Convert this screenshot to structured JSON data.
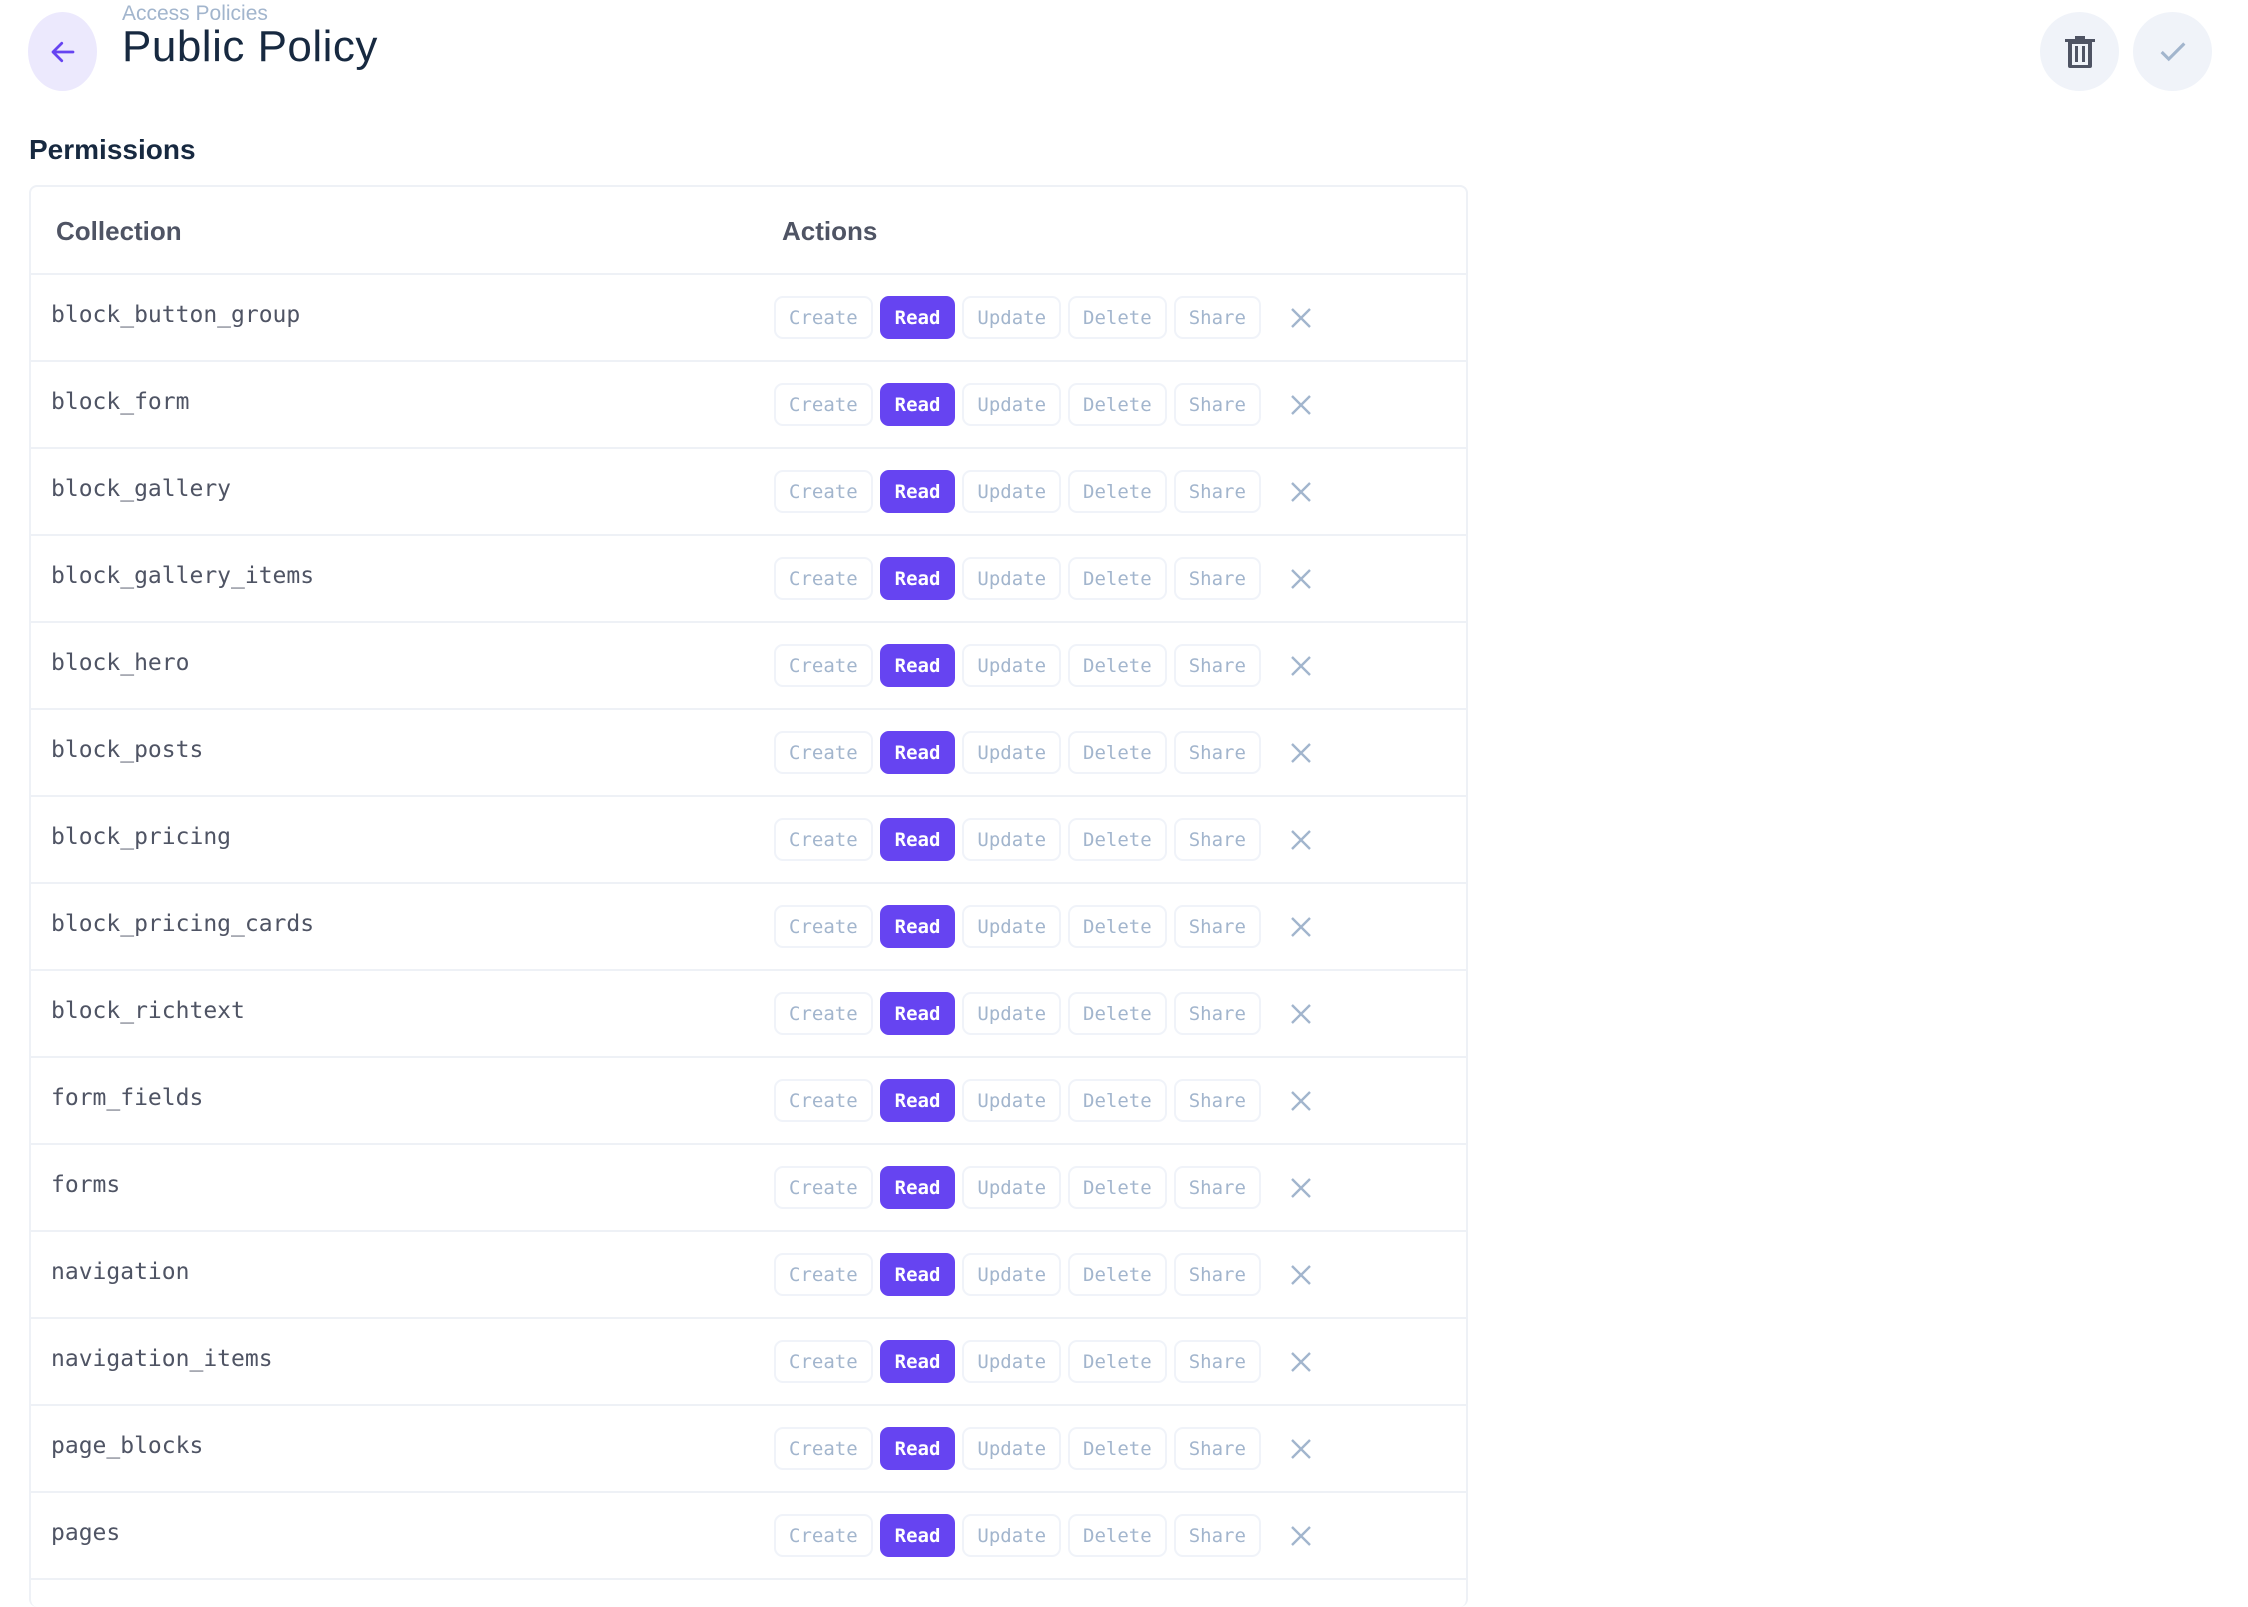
{
  "header": {
    "breadcrumb": "Access Policies",
    "title": "Public Policy",
    "back_icon": "arrow-left-icon",
    "delete_icon": "trash-icon",
    "save_icon": "check-icon"
  },
  "permissions": {
    "section_title": "Permissions",
    "columns": {
      "collection": "Collection",
      "actions": "Actions"
    },
    "action_labels": [
      "Create",
      "Read",
      "Update",
      "Delete",
      "Share"
    ],
    "accent_color": "#6644f1",
    "rows": [
      {
        "collection": "block_button_group",
        "enabled": [
          "Read"
        ]
      },
      {
        "collection": "block_form",
        "enabled": [
          "Read"
        ]
      },
      {
        "collection": "block_gallery",
        "enabled": [
          "Read"
        ]
      },
      {
        "collection": "block_gallery_items",
        "enabled": [
          "Read"
        ]
      },
      {
        "collection": "block_hero",
        "enabled": [
          "Read"
        ]
      },
      {
        "collection": "block_posts",
        "enabled": [
          "Read"
        ]
      },
      {
        "collection": "block_pricing",
        "enabled": [
          "Read"
        ]
      },
      {
        "collection": "block_pricing_cards",
        "enabled": [
          "Read"
        ]
      },
      {
        "collection": "block_richtext",
        "enabled": [
          "Read"
        ]
      },
      {
        "collection": "form_fields",
        "enabled": [
          "Read"
        ]
      },
      {
        "collection": "forms",
        "enabled": [
          "Read"
        ]
      },
      {
        "collection": "navigation",
        "enabled": [
          "Read"
        ]
      },
      {
        "collection": "navigation_items",
        "enabled": [
          "Read"
        ]
      },
      {
        "collection": "page_blocks",
        "enabled": [
          "Read"
        ]
      },
      {
        "collection": "pages",
        "enabled": [
          "Read"
        ]
      }
    ]
  }
}
